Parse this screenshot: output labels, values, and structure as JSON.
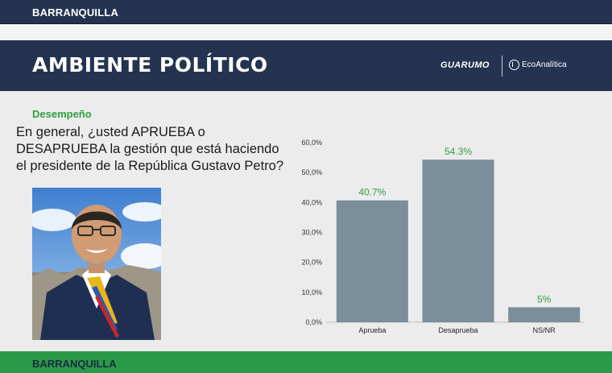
{
  "top_bar": {
    "city": "BARRANQUILLA"
  },
  "header": {
    "title": "AMBIENTE POLÍTICO",
    "brand_guarumo": "GUARUMO",
    "brand_eco": "EcoAnalítica"
  },
  "section_label": "Desempeño",
  "question": "En general, ¿usted APRUEBA o DESAPRUEBA la gestión que está haciendo el presidente de la República Gustavo Petro?",
  "footer": {
    "city": "BARRANQUILLA"
  },
  "chart_data": {
    "type": "bar",
    "categories": [
      "Aprueba",
      "Desaprueba",
      "NS/NR"
    ],
    "values": [
      40.7,
      54.3,
      5
    ],
    "value_labels": [
      "40.7%",
      "54.3%",
      "5%"
    ],
    "yticks": [
      "0,0%",
      "10,0%",
      "20,0%",
      "30,0%",
      "40,0%",
      "50,0%",
      "60,0%"
    ],
    "ylim": [
      0,
      60
    ],
    "grid": false,
    "bar_color": "#7a8e9b",
    "label_color": "#2ea043"
  },
  "colors": {
    "navy": "#243350",
    "green": "#2a9a48",
    "background": "#ececec"
  }
}
